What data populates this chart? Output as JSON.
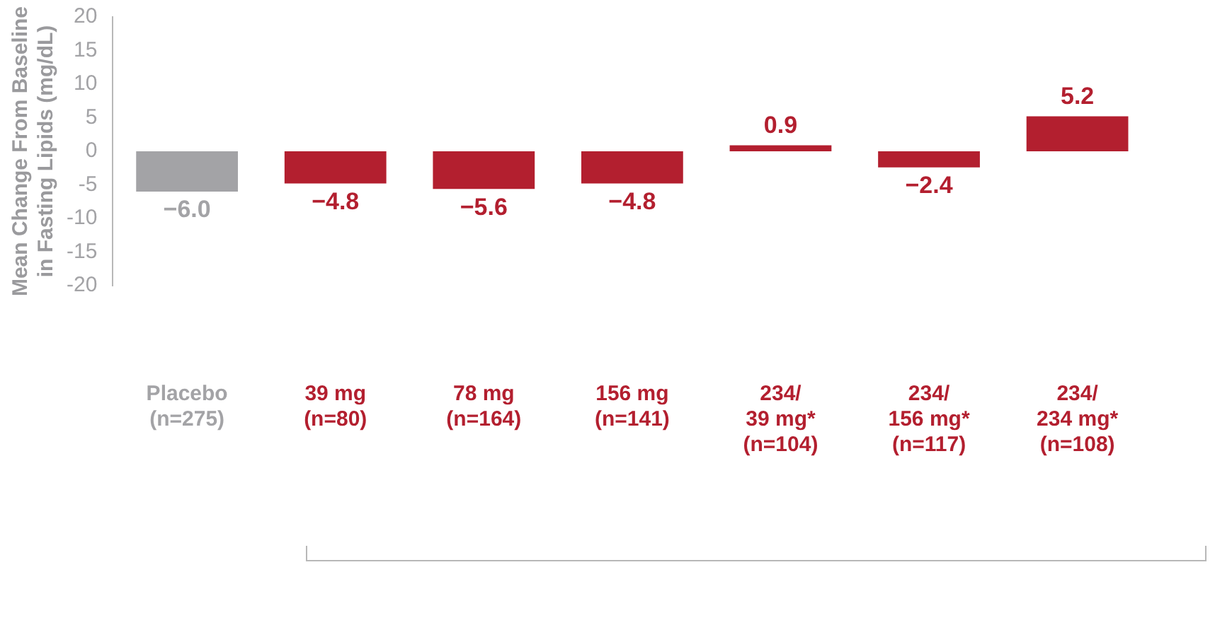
{
  "chart_data": {
    "type": "bar",
    "ylabel": "Mean Change From Baseline\nin Fasting Lipids (mg/dL)",
    "categories": [
      "Placebo\n(n=275)",
      "39 mg\n(n=80)",
      "78 mg\n(n=164)",
      "156 mg\n(n=141)",
      "234/\n39 mg*\n(n=104)",
      "234/\n156 mg*\n(n=117)",
      "234/\n234 mg*\n(n=108)"
    ],
    "values": [
      -6.0,
      -4.8,
      -5.6,
      -4.8,
      0.9,
      -2.4,
      5.2
    ],
    "colors": [
      "#a3a3a6",
      "#b31f2f",
      "#b31f2f",
      "#b31f2f",
      "#b31f2f",
      "#b31f2f",
      "#b31f2f"
    ],
    "value_labels": [
      "−6.0",
      "−4.8",
      "−5.6",
      "−4.8",
      "0.9",
      "−2.4",
      "5.2"
    ],
    "ylim": [
      -20,
      20
    ],
    "yticks": [
      -20,
      -15,
      -10,
      -5,
      0,
      5,
      10,
      15,
      20
    ],
    "grid": false,
    "legend": false
  }
}
